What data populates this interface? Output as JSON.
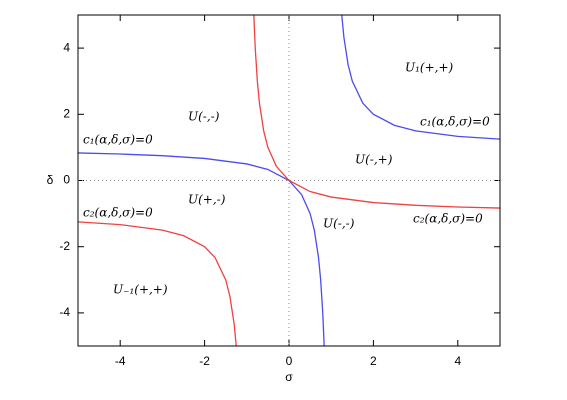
{
  "chart_data": {
    "type": "line",
    "xlabel": "σ",
    "ylabel": "δ",
    "xlim": [
      -5,
      5
    ],
    "ylim": [
      -5,
      5
    ],
    "xticks": [
      -4,
      -2,
      0,
      2,
      4
    ],
    "yticks": [
      -4,
      -2,
      0,
      2,
      4
    ],
    "zeroaxis": true,
    "series": [
      {
        "color": "#4b4bf0",
        "x": [
          -5,
          -4,
          -3,
          -2,
          -1,
          -0.5,
          0,
          0.3,
          0.5,
          0.6,
          0.7,
          0.75,
          0.8,
          0.8333
        ],
        "values": [
          0.8333,
          0.8,
          0.75,
          0.6667,
          0.5,
          0.3333,
          0,
          -0.4286,
          -1,
          -1.5,
          -2.3333,
          -3,
          -4,
          -5
        ]
      },
      {
        "color": "#4b4bf0",
        "x": [
          1.25,
          1.3,
          1.4,
          1.5,
          1.75,
          2,
          2.5,
          3,
          4,
          5
        ],
        "values": [
          5,
          4.3333,
          3.5,
          3,
          2.3333,
          2,
          1.6667,
          1.5,
          1.3333,
          1.25
        ]
      },
      {
        "color": "#f04040",
        "x": [
          -0.8333,
          -0.8,
          -0.75,
          -0.7,
          -0.6,
          -0.5,
          -0.3,
          0,
          0.5,
          1,
          2,
          3,
          4,
          5
        ],
        "values": [
          5,
          4,
          3,
          2.3333,
          1.5,
          1,
          0.4286,
          0,
          -0.3333,
          -0.5,
          -0.6667,
          -0.75,
          -0.8,
          -0.8333
        ]
      },
      {
        "color": "#f04040",
        "x": [
          -5,
          -4,
          -3,
          -2.5,
          -2,
          -1.75,
          -1.5,
          -1.4,
          -1.3,
          -1.25
        ],
        "values": [
          -1.25,
          -1.3333,
          -1.5,
          -1.6667,
          -2,
          -2.3333,
          -3,
          -3.5,
          -4.3333,
          -5
        ]
      }
    ],
    "annotations": [
      "c₁(α,δ,σ)=0",
      "U(-,-)",
      "U(-,+)",
      "U₁(+,+)",
      "c₁(α,δ,σ)=0",
      "U(+,-)",
      "c₂(α,δ,σ)=0",
      "U(-,-)",
      "c₂(α,δ,σ)=0",
      "U₋₁(+,+)"
    ]
  }
}
